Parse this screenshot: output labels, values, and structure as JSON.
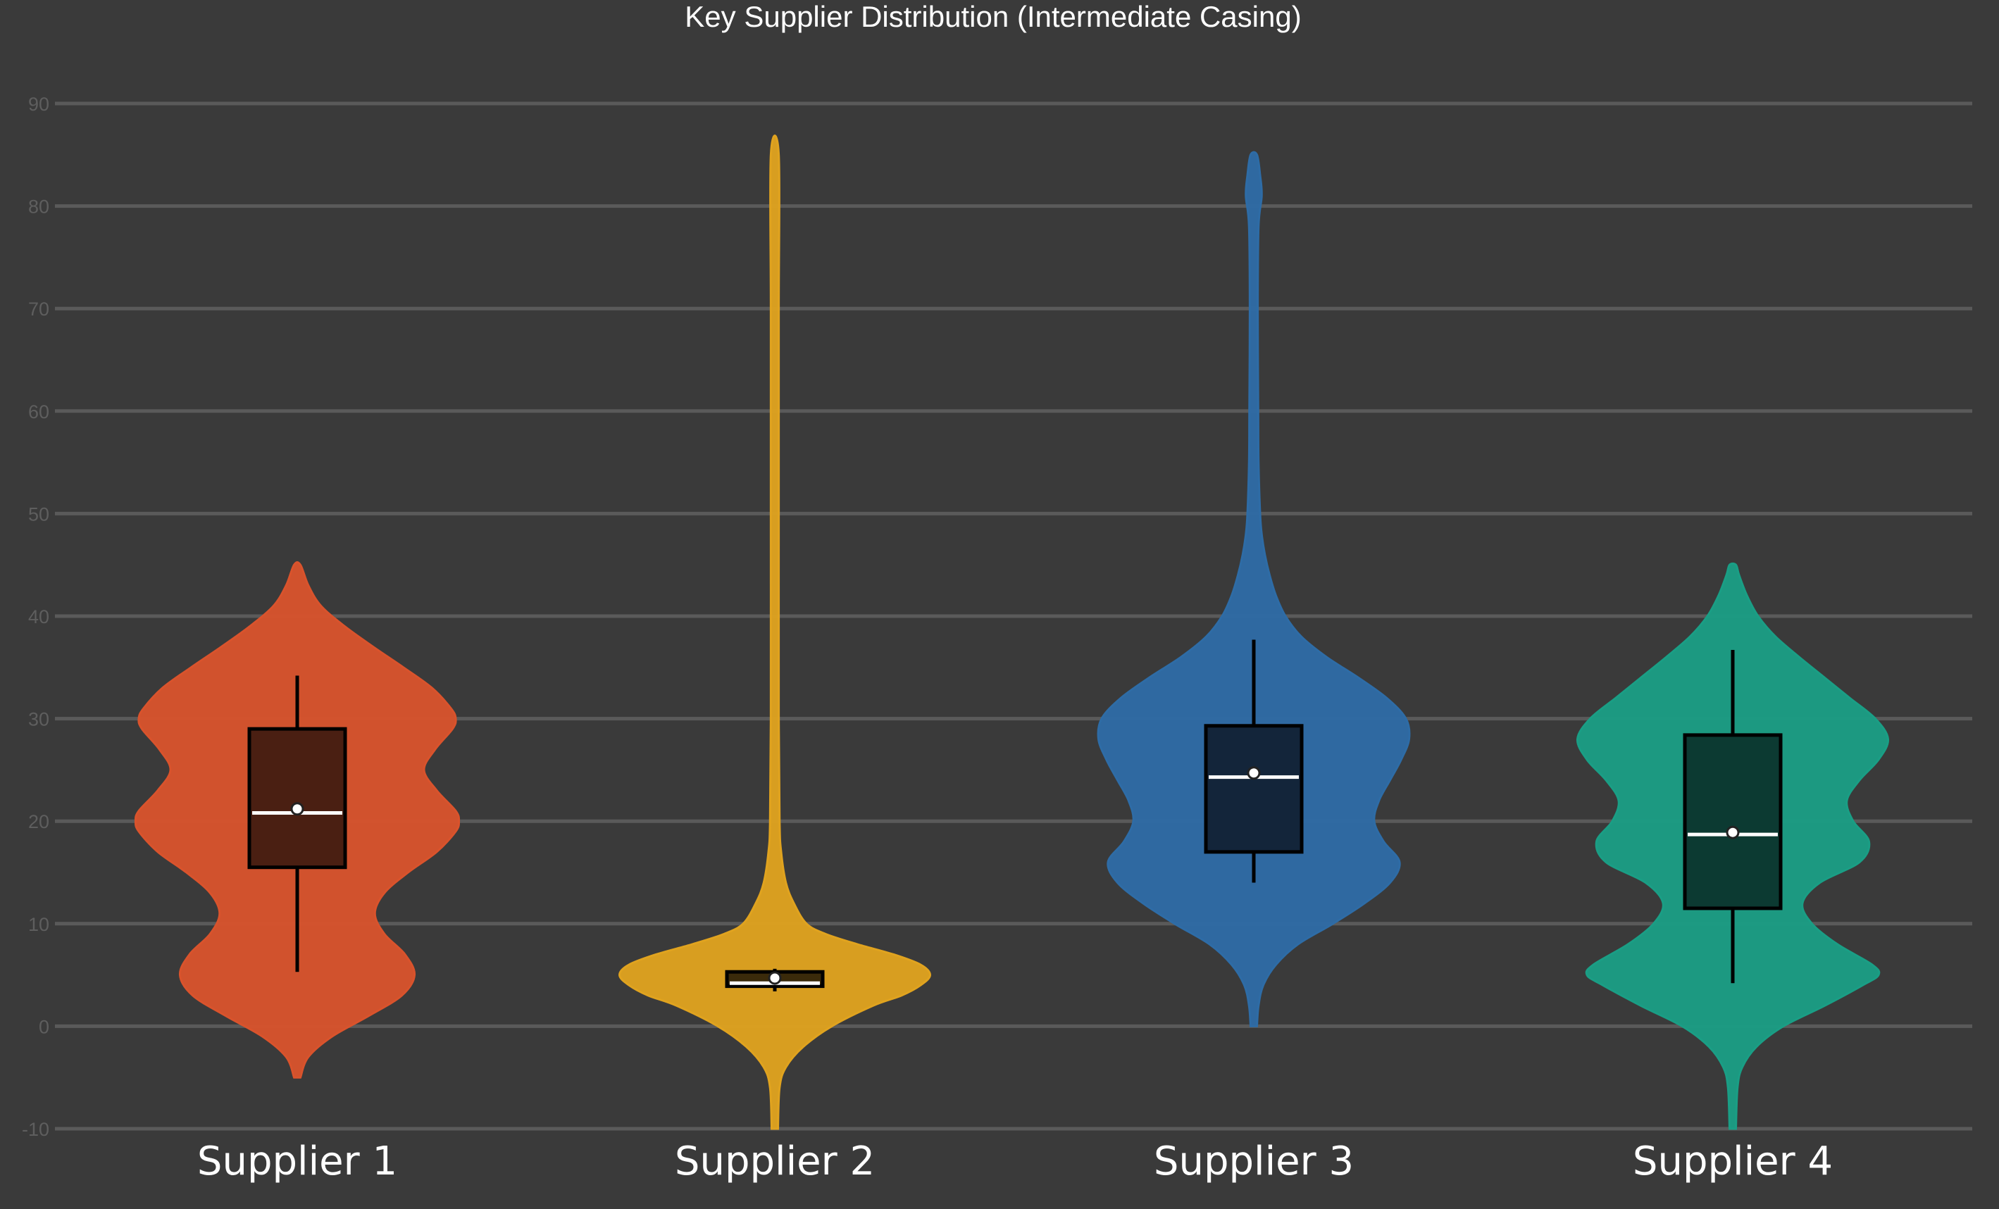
{
  "chart_data": {
    "type": "violin",
    "title": "Key Supplier Distribution (Intermediate Casing)",
    "xlabel": "",
    "ylabel": "",
    "ylim": [
      -10,
      90
    ],
    "yticks": [
      -10,
      0,
      10,
      20,
      30,
      40,
      50,
      60,
      70,
      80,
      90
    ],
    "grid": true,
    "legend": "none",
    "background_color": "#3a3a3a",
    "categories": [
      "Supplier 1",
      "Supplier 2",
      "Supplier 3",
      "Supplier 4"
    ],
    "series": [
      {
        "category": "Supplier 1",
        "color": "#d9532c",
        "box_color": "#4a1f12",
        "range": [
          -5,
          45
        ],
        "box": {
          "whisker_low": 5.3,
          "q1": 15.5,
          "median": 20.8,
          "mean": 21.2,
          "q3": 29,
          "whisker_high": 34.2
        },
        "density": [
          [
            -5,
            0.02
          ],
          [
            -3,
            0.07
          ],
          [
            -1,
            0.22
          ],
          [
            1,
            0.45
          ],
          [
            3,
            0.66
          ],
          [
            5,
            0.74
          ],
          [
            7,
            0.68
          ],
          [
            9,
            0.55
          ],
          [
            11,
            0.49
          ],
          [
            13,
            0.55
          ],
          [
            15,
            0.7
          ],
          [
            17,
            0.88
          ],
          [
            19,
            1.0
          ],
          [
            20,
            1.02
          ],
          [
            21,
            1.0
          ],
          [
            23,
            0.88
          ],
          [
            25,
            0.8
          ],
          [
            27,
            0.87
          ],
          [
            29,
            0.98
          ],
          [
            30,
            1.0
          ],
          [
            31,
            0.97
          ],
          [
            33,
            0.85
          ],
          [
            35,
            0.67
          ],
          [
            37,
            0.48
          ],
          [
            39,
            0.3
          ],
          [
            41,
            0.15
          ],
          [
            43,
            0.07
          ],
          [
            45,
            0.02
          ]
        ]
      },
      {
        "category": "Supplier 2",
        "color": "#e0a31f",
        "box_color": "#3a2a0a",
        "range": [
          -10,
          85
        ],
        "box": {
          "whisker_low": 3.4,
          "q1": 3.9,
          "median": 4.2,
          "mean": 4.7,
          "q3": 5.3,
          "whisker_high": 5.6
        },
        "density": [
          [
            -10,
            0.02
          ],
          [
            -6,
            0.03
          ],
          [
            -4,
            0.07
          ],
          [
            -2,
            0.18
          ],
          [
            0,
            0.36
          ],
          [
            2,
            0.62
          ],
          [
            3,
            0.8
          ],
          [
            4,
            0.92
          ],
          [
            5,
            0.98
          ],
          [
            6,
            0.92
          ],
          [
            7,
            0.75
          ],
          [
            8,
            0.52
          ],
          [
            9,
            0.32
          ],
          [
            10,
            0.2
          ],
          [
            12,
            0.12
          ],
          [
            14,
            0.07
          ],
          [
            17,
            0.04
          ],
          [
            20,
            0.03
          ],
          [
            30,
            0.025
          ],
          [
            50,
            0.025
          ],
          [
            70,
            0.025
          ],
          [
            85,
            0.025
          ]
        ]
      },
      {
        "category": "Supplier 3",
        "color": "#2e6ca6",
        "box_color": "#13253a",
        "range": [
          0,
          85
        ],
        "box": {
          "whisker_low": 14,
          "q1": 17,
          "median": 24.3,
          "mean": 24.7,
          "q3": 29.3,
          "whisker_high": 37.7
        },
        "density": [
          [
            0,
            0.02
          ],
          [
            2,
            0.03
          ],
          [
            4,
            0.06
          ],
          [
            6,
            0.14
          ],
          [
            8,
            0.28
          ],
          [
            10,
            0.5
          ],
          [
            12,
            0.7
          ],
          [
            14,
            0.86
          ],
          [
            16,
            0.92
          ],
          [
            18,
            0.82
          ],
          [
            20,
            0.76
          ],
          [
            22,
            0.79
          ],
          [
            24,
            0.86
          ],
          [
            26,
            0.93
          ],
          [
            28,
            0.98
          ],
          [
            30,
            0.96
          ],
          [
            32,
            0.84
          ],
          [
            34,
            0.66
          ],
          [
            36,
            0.46
          ],
          [
            38,
            0.3
          ],
          [
            40,
            0.2
          ],
          [
            42,
            0.14
          ],
          [
            44,
            0.1
          ],
          [
            46,
            0.07
          ],
          [
            48,
            0.05
          ],
          [
            50,
            0.04
          ],
          [
            55,
            0.03
          ],
          [
            60,
            0.028
          ],
          [
            70,
            0.025
          ],
          [
            78,
            0.03
          ],
          [
            81,
            0.05
          ],
          [
            83,
            0.04
          ],
          [
            85,
            0.02
          ]
        ]
      },
      {
        "category": "Supplier 4",
        "color": "#1a9e85",
        "box_color": "#0c3a32",
        "range": [
          -10,
          45
        ],
        "box": {
          "whisker_low": 4.2,
          "q1": 11.5,
          "median": 18.7,
          "mean": 18.9,
          "q3": 28.4,
          "whisker_high": 36.7
        },
        "density": [
          [
            -10,
            0.02
          ],
          [
            -6,
            0.03
          ],
          [
            -4,
            0.06
          ],
          [
            -2,
            0.15
          ],
          [
            0,
            0.32
          ],
          [
            2,
            0.58
          ],
          [
            4,
            0.82
          ],
          [
            5,
            0.92
          ],
          [
            6,
            0.88
          ],
          [
            8,
            0.66
          ],
          [
            10,
            0.5
          ],
          [
            12,
            0.44
          ],
          [
            14,
            0.55
          ],
          [
            16,
            0.8
          ],
          [
            18,
            0.86
          ],
          [
            20,
            0.76
          ],
          [
            22,
            0.72
          ],
          [
            24,
            0.8
          ],
          [
            26,
            0.92
          ],
          [
            28,
            0.98
          ],
          [
            30,
            0.9
          ],
          [
            32,
            0.74
          ],
          [
            34,
            0.58
          ],
          [
            36,
            0.42
          ],
          [
            38,
            0.27
          ],
          [
            40,
            0.16
          ],
          [
            42,
            0.09
          ],
          [
            44,
            0.04
          ],
          [
            45,
            0.02
          ]
        ]
      }
    ]
  }
}
